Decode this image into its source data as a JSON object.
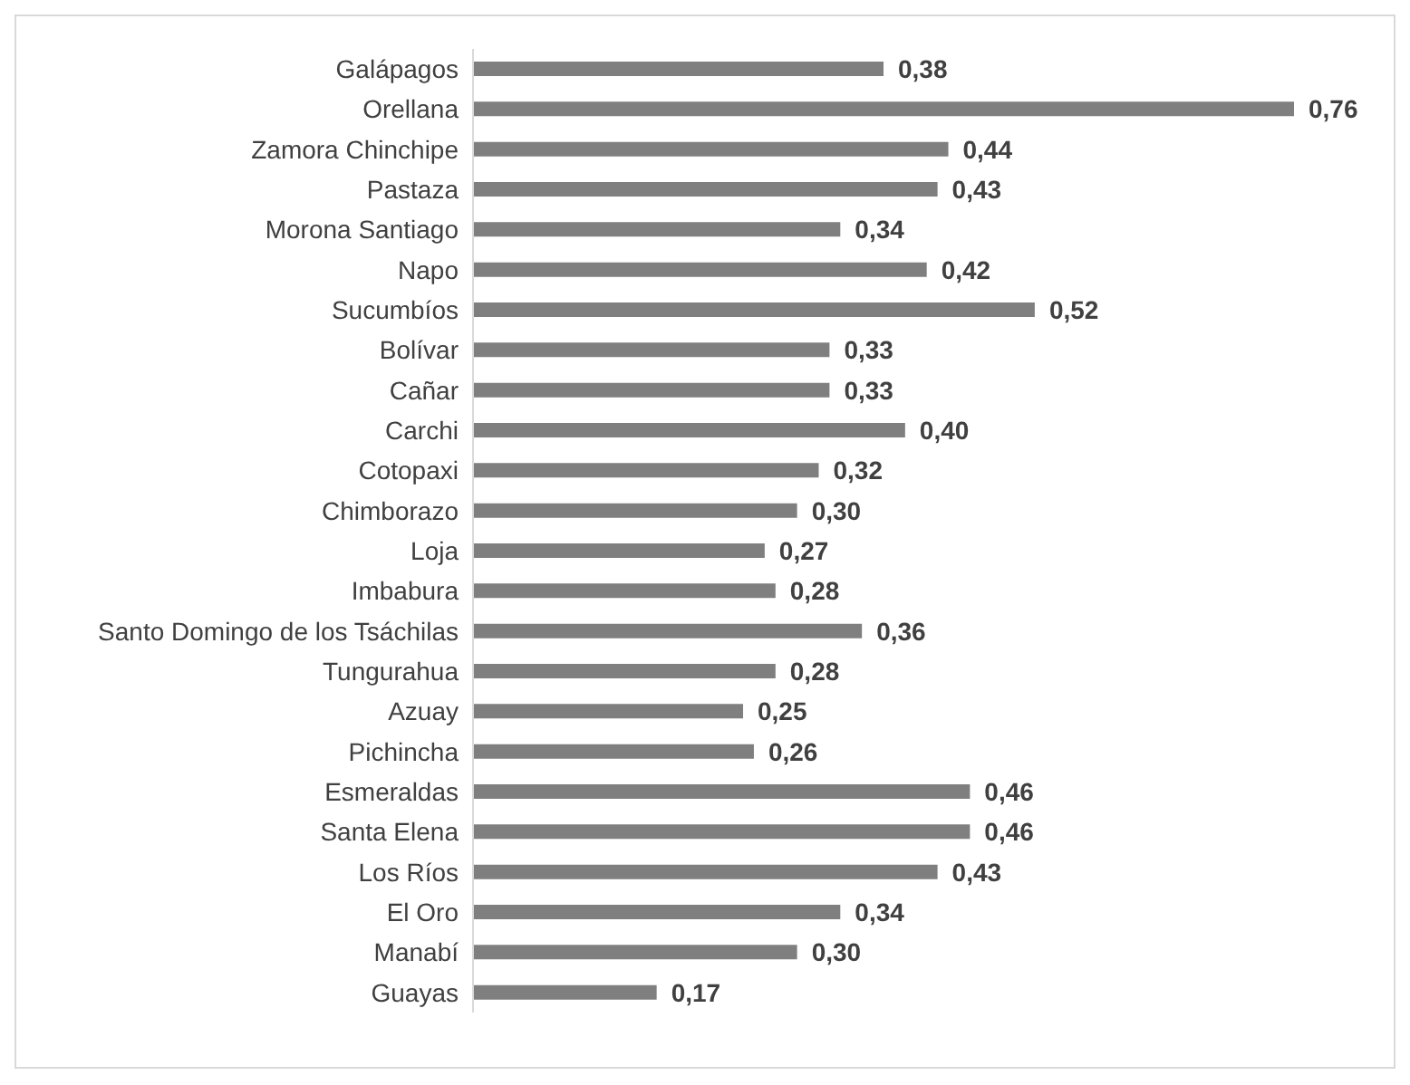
{
  "chart_data": {
    "type": "bar",
    "orientation": "horizontal",
    "categories": [
      "Galápagos",
      "Orellana",
      "Zamora Chinchipe",
      "Pastaza",
      "Morona Santiago",
      "Napo",
      "Sucumbíos",
      "Bolívar",
      "Cañar",
      "Carchi",
      "Cotopaxi",
      "Chimborazo",
      "Loja",
      "Imbabura",
      "Santo Domingo de los Tsáchilas",
      "Tungurahua",
      "Azuay",
      "Pichincha",
      "Esmeraldas",
      "Santa Elena",
      "Los Ríos",
      "El Oro",
      "Manabí",
      "Guayas"
    ],
    "values": [
      0.38,
      0.76,
      0.44,
      0.43,
      0.34,
      0.42,
      0.52,
      0.33,
      0.33,
      0.4,
      0.32,
      0.3,
      0.27,
      0.28,
      0.36,
      0.28,
      0.25,
      0.26,
      0.46,
      0.46,
      0.43,
      0.34,
      0.3,
      0.17
    ],
    "value_labels": [
      "0,38",
      "0,76",
      "0,44",
      "0,43",
      "0,34",
      "0,42",
      "0,52",
      "0,33",
      "0,33",
      "0,40",
      "0,32",
      "0,30",
      "0,27",
      "0,28",
      "0,36",
      "0,28",
      "0,25",
      "0,26",
      "0,46",
      "0,46",
      "0,43",
      "0,34",
      "0,30",
      "0,17"
    ],
    "color": "#7f7f7f",
    "grid": false,
    "legend": false
  }
}
